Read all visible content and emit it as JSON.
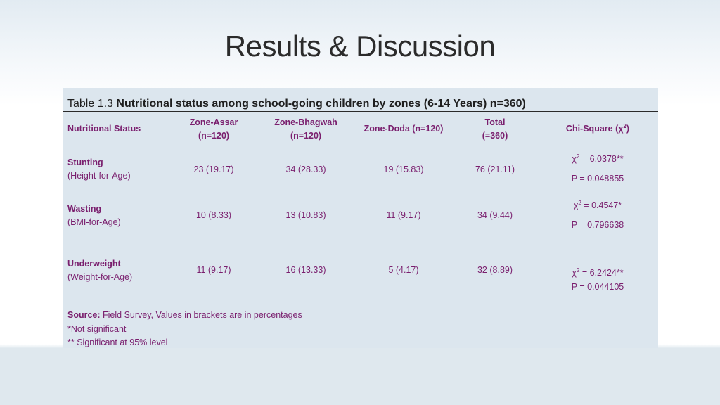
{
  "slide": {
    "title": "Results & Discussion"
  },
  "table": {
    "caption_prefix": "Table 1.3 ",
    "caption_bold": "Nutritional status among school-going children by zones (6-14 Years) n=360)",
    "headers": {
      "status": "Nutritional Status",
      "assar_1": "Zone-Assar",
      "assar_2": "(n=120)",
      "bhagwah_1": "Zone-Bhagwah",
      "bhagwah_2": "(n=120)",
      "doda": "Zone-Doda (n=120)",
      "total_1": "Total",
      "total_2": "(=360)",
      "chi_pre": "Chi-Square (χ",
      "chi_sup": "2",
      "chi_post": ")"
    },
    "rows": [
      {
        "name": "Stunting",
        "sub": "(Height-for-Age)",
        "assar": "23 (19.17)",
        "bhagwah": "34 (28.33)",
        "doda": "19 (15.83)",
        "total": "76 (21.11)",
        "chi_sym": "χ",
        "chi_sup": "2",
        "chi_val": " = 6.0378**",
        "p": "P = 0.048855"
      },
      {
        "name": "Wasting",
        "sub": "(BMI-for-Age)",
        "assar": "10 (8.33)",
        "bhagwah": "13 (10.83)",
        "doda": "11 (9.17)",
        "total": "34 (9.44)",
        "chi_sym": "χ",
        "chi_sup": "2",
        "chi_val": " = 0.4547*",
        "p": "P = 0.796638"
      },
      {
        "name": "Underweight",
        "sub": "(Weight-for-Age)",
        "assar": "11 (9.17)",
        "bhagwah": "16 (13.33)",
        "doda": "5 (4.17)",
        "total": "32 (8.89)",
        "chi_sym": "χ",
        "chi_sup": "2",
        "chi_val": " = 6.2424**",
        "p": "P = 0.044105"
      }
    ],
    "notes": {
      "source_label": "Source:",
      "source_text": " Field Survey, Values in brackets are in percentages",
      "note1": "*Not significant",
      "note2": "** Significant at 95% level"
    }
  }
}
